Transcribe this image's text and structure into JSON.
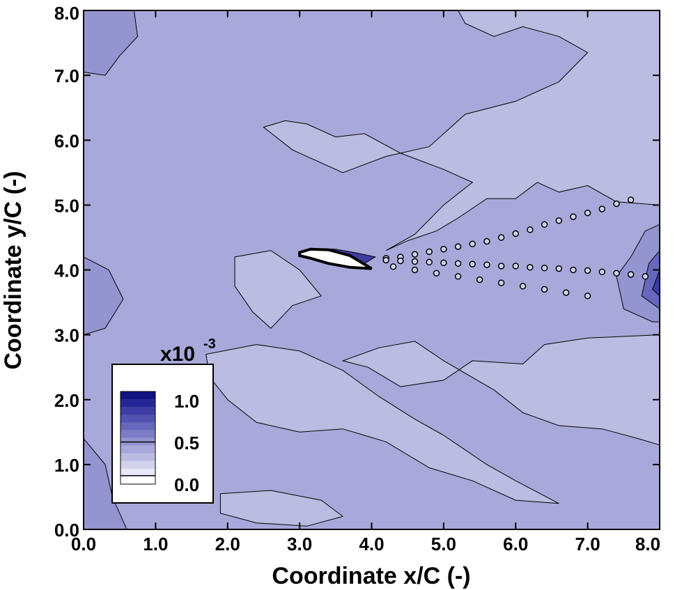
{
  "chart_data": {
    "type": "heatmap",
    "title": "",
    "xlabel": "Coordinate x/C (-)",
    "ylabel": "Coordinate y/C (-)",
    "xlim": [
      0.0,
      8.0
    ],
    "ylim": [
      0.0,
      8.0
    ],
    "x_ticks": [
      "0.0",
      "1.0",
      "2.0",
      "3.0",
      "4.0",
      "5.0",
      "6.0",
      "7.0",
      "8.0"
    ],
    "y_ticks": [
      "0.0",
      "1.0",
      "2.0",
      "3.0",
      "4.0",
      "5.0",
      "6.0",
      "7.0",
      "8.0"
    ],
    "legend": {
      "placement": "bottom-left",
      "scale_label": "x10",
      "scale_exponent": "-3",
      "labels": [
        "1.0",
        "0.5",
        "0.0"
      ],
      "range": [
        0.0,
        1.1
      ],
      "levels": [
        0.0,
        0.1,
        0.2,
        0.3,
        0.4,
        0.5,
        0.6,
        0.7,
        0.8,
        0.9,
        1.0,
        1.1
      ],
      "colors": [
        "#ffffff",
        "#e8e8f6",
        "#d2d2ec",
        "#bcbce2",
        "#a8a8da",
        "#9494d0",
        "#7d7dc6",
        "#6767bc",
        "#5252b0",
        "#3d3da4",
        "#262696",
        "#121283"
      ]
    },
    "background_level": 0.4,
    "regions": [
      {
        "level": 0.3,
        "polygon": [
          [
            5.2,
            8.0
          ],
          [
            8.0,
            8.0
          ],
          [
            8.0,
            5.0
          ],
          [
            7.4,
            5.05
          ],
          [
            7.0,
            5.3
          ],
          [
            6.6,
            5.2
          ],
          [
            6.3,
            5.35
          ],
          [
            6.0,
            5.1
          ],
          [
            5.6,
            5.1
          ],
          [
            5.2,
            4.8
          ],
          [
            4.9,
            4.6
          ],
          [
            4.5,
            4.45
          ],
          [
            4.2,
            4.3
          ],
          [
            4.6,
            4.55
          ],
          [
            5.0,
            5.0
          ],
          [
            5.4,
            5.35
          ],
          [
            5.0,
            5.55
          ],
          [
            4.4,
            5.8
          ],
          [
            3.9,
            6.1
          ],
          [
            3.5,
            6.05
          ],
          [
            3.1,
            6.25
          ],
          [
            2.8,
            6.3
          ],
          [
            2.5,
            6.2
          ],
          [
            2.9,
            5.85
          ],
          [
            3.6,
            5.5
          ],
          [
            4.2,
            5.75
          ],
          [
            4.8,
            5.9
          ],
          [
            5.3,
            6.4
          ],
          [
            6.0,
            6.6
          ],
          [
            6.6,
            6.9
          ],
          [
            7.0,
            7.35
          ],
          [
            6.6,
            7.6
          ],
          [
            6.1,
            7.75
          ],
          [
            5.7,
            7.6
          ],
          [
            5.3,
            7.8
          ]
        ]
      },
      {
        "level": 0.3,
        "polygon": [
          [
            8.0,
            3.0
          ],
          [
            7.0,
            2.95
          ],
          [
            6.4,
            2.85
          ],
          [
            6.1,
            2.55
          ],
          [
            5.4,
            2.6
          ],
          [
            5.0,
            2.3
          ],
          [
            4.4,
            2.2
          ],
          [
            3.95,
            2.5
          ],
          [
            3.6,
            2.6
          ],
          [
            4.1,
            2.8
          ],
          [
            4.6,
            2.9
          ],
          [
            5.0,
            2.6
          ],
          [
            5.7,
            2.15
          ],
          [
            6.1,
            1.8
          ],
          [
            6.6,
            1.6
          ],
          [
            7.2,
            1.55
          ],
          [
            7.7,
            1.4
          ],
          [
            8.0,
            1.3
          ]
        ]
      },
      {
        "level": 0.3,
        "polygon": [
          [
            1.7,
            2.7
          ],
          [
            2.4,
            2.85
          ],
          [
            3.0,
            2.75
          ],
          [
            3.6,
            2.45
          ],
          [
            4.1,
            2.05
          ],
          [
            4.6,
            1.7
          ],
          [
            5.0,
            1.45
          ],
          [
            5.6,
            1.0
          ],
          [
            6.0,
            0.75
          ],
          [
            6.6,
            0.4
          ],
          [
            6.0,
            0.45
          ],
          [
            5.4,
            0.75
          ],
          [
            4.8,
            0.95
          ],
          [
            4.2,
            1.35
          ],
          [
            3.6,
            1.55
          ],
          [
            3.0,
            1.5
          ],
          [
            2.4,
            1.65
          ],
          [
            2.0,
            2.0
          ],
          [
            1.75,
            2.35
          ]
        ]
      },
      {
        "level": 0.3,
        "polygon": [
          [
            1.9,
            0.55
          ],
          [
            2.6,
            0.6
          ],
          [
            3.3,
            0.45
          ],
          [
            3.6,
            0.2
          ],
          [
            3.1,
            0.05
          ],
          [
            2.4,
            0.1
          ],
          [
            1.9,
            0.25
          ]
        ]
      },
      {
        "level": 0.3,
        "polygon": [
          [
            2.1,
            4.2
          ],
          [
            2.6,
            4.3
          ],
          [
            3.0,
            4.0
          ],
          [
            3.3,
            3.6
          ],
          [
            2.9,
            3.45
          ],
          [
            2.6,
            3.1
          ],
          [
            2.35,
            3.35
          ],
          [
            2.1,
            3.75
          ]
        ]
      },
      {
        "level": 0.5,
        "polygon": [
          [
            0.0,
            8.0
          ],
          [
            0.7,
            8.0
          ],
          [
            0.75,
            7.6
          ],
          [
            0.5,
            7.3
          ],
          [
            0.3,
            7.0
          ],
          [
            0.0,
            7.05
          ]
        ]
      },
      {
        "level": 0.5,
        "polygon": [
          [
            0.0,
            4.2
          ],
          [
            0.35,
            4.0
          ],
          [
            0.55,
            3.55
          ],
          [
            0.3,
            3.1
          ],
          [
            0.0,
            3.0
          ]
        ]
      },
      {
        "level": 0.5,
        "polygon": [
          [
            0.0,
            1.4
          ],
          [
            0.3,
            1.0
          ],
          [
            0.4,
            0.5
          ],
          [
            0.6,
            0.0
          ],
          [
            0.0,
            0.0
          ]
        ]
      },
      {
        "level": 0.5,
        "polygon": [
          [
            7.5,
            3.4
          ],
          [
            7.9,
            3.2
          ],
          [
            8.0,
            3.2
          ],
          [
            8.0,
            4.7
          ],
          [
            7.8,
            4.6
          ],
          [
            7.6,
            4.2
          ],
          [
            7.4,
            3.9
          ]
        ]
      },
      {
        "level": 0.7,
        "polygon": [
          [
            7.75,
            3.6
          ],
          [
            8.0,
            3.4
          ],
          [
            8.0,
            4.3
          ],
          [
            7.85,
            4.1
          ]
        ]
      },
      {
        "level": 0.9,
        "polygon": [
          [
            7.9,
            3.7
          ],
          [
            8.0,
            3.6
          ],
          [
            8.0,
            4.0
          ]
        ]
      },
      {
        "level": 0.9,
        "polygon": [
          [
            3.05,
            4.3
          ],
          [
            3.2,
            4.33
          ],
          [
            3.5,
            4.32
          ],
          [
            3.8,
            4.26
          ],
          [
            4.05,
            4.2
          ],
          [
            3.9,
            4.1
          ],
          [
            3.6,
            4.12
          ],
          [
            3.3,
            4.2
          ]
        ]
      }
    ],
    "wake_points": [
      [
        4.2,
        4.18,
        0.2
      ],
      [
        4.4,
        4.2,
        0.2
      ],
      [
        4.6,
        4.24,
        0.2
      ],
      [
        4.8,
        4.28,
        0.2
      ],
      [
        5.0,
        4.32,
        0.2
      ],
      [
        5.2,
        4.36,
        0.2
      ],
      [
        5.4,
        4.4,
        0.2
      ],
      [
        5.6,
        4.44,
        0.2
      ],
      [
        5.8,
        4.5,
        0.2
      ],
      [
        6.0,
        4.56,
        0.2
      ],
      [
        6.2,
        4.62,
        0.2
      ],
      [
        6.4,
        4.7,
        0.2
      ],
      [
        6.6,
        4.76,
        0.2
      ],
      [
        6.8,
        4.82,
        0.2
      ],
      [
        7.0,
        4.88,
        0.2
      ],
      [
        7.2,
        4.94,
        0.2
      ],
      [
        7.4,
        5.02,
        0.2
      ],
      [
        7.6,
        5.08,
        0.2
      ],
      [
        4.2,
        4.15,
        0.2
      ],
      [
        4.4,
        4.14,
        0.2
      ],
      [
        4.6,
        4.13,
        0.2
      ],
      [
        4.8,
        4.12,
        0.2
      ],
      [
        5.0,
        4.11,
        0.2
      ],
      [
        5.2,
        4.1,
        0.2
      ],
      [
        5.4,
        4.09,
        0.2
      ],
      [
        5.6,
        4.08,
        0.2
      ],
      [
        5.8,
        4.06,
        0.2
      ],
      [
        6.0,
        4.06,
        0.2
      ],
      [
        6.2,
        4.04,
        0.2
      ],
      [
        6.4,
        4.03,
        0.2
      ],
      [
        6.6,
        4.02,
        0.2
      ],
      [
        6.8,
        4.0,
        0.2
      ],
      [
        7.0,
        3.99,
        0.2
      ],
      [
        7.2,
        3.97,
        0.2
      ],
      [
        7.4,
        3.95,
        0.2
      ],
      [
        7.6,
        3.93,
        0.2
      ],
      [
        7.8,
        3.9,
        0.2
      ],
      [
        4.3,
        4.05,
        0.2
      ],
      [
        4.6,
        4.0,
        0.2
      ],
      [
        4.9,
        3.95,
        0.2
      ],
      [
        5.2,
        3.9,
        0.2
      ],
      [
        5.5,
        3.85,
        0.2
      ],
      [
        5.8,
        3.8,
        0.2
      ],
      [
        6.1,
        3.75,
        0.2
      ],
      [
        6.4,
        3.7,
        0.2
      ],
      [
        6.7,
        3.65,
        0.2
      ],
      [
        7.0,
        3.6,
        0.2
      ]
    ],
    "airfoil": [
      [
        3.0,
        4.27
      ],
      [
        3.15,
        4.32
      ],
      [
        3.4,
        4.31
      ],
      [
        3.7,
        4.22
      ],
      [
        4.0,
        4.02
      ],
      [
        3.7,
        4.04
      ],
      [
        3.4,
        4.1
      ],
      [
        3.15,
        4.18
      ],
      [
        3.0,
        4.22
      ]
    ]
  }
}
